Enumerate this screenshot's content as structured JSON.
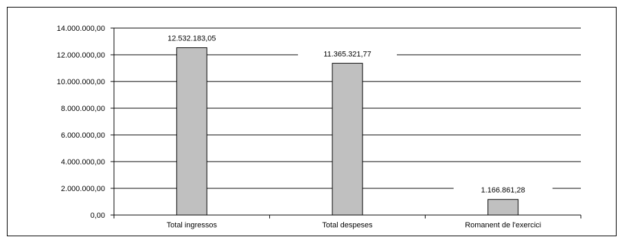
{
  "chart_data": {
    "type": "bar",
    "categories": [
      "Total ingressos",
      "Total despeses",
      "Romanent de l'exercici"
    ],
    "values": [
      12532183.05,
      11365321.77,
      1166861.28
    ],
    "value_labels": [
      "12.532.183,05",
      "11.365.321,77",
      "1.166.861,28"
    ],
    "title": "",
    "xlabel": "",
    "ylabel": "",
    "ylim": [
      0,
      14000000
    ],
    "yticks": [
      0,
      2000000,
      4000000,
      6000000,
      8000000,
      10000000,
      12000000,
      14000000
    ],
    "ytick_labels": [
      "0,00",
      "2.000.000,00",
      "4.000.000,00",
      "6.000.000,00",
      "8.000.000,00",
      "10.000.000,00",
      "12.000.000,00",
      "14.000.000,00"
    ],
    "grid": true,
    "legend": "none",
    "colors": {
      "bar_fill": "#c0c0c0",
      "bar_stroke": "#000000",
      "gridline": "#000000",
      "background": "#ffffff"
    }
  }
}
